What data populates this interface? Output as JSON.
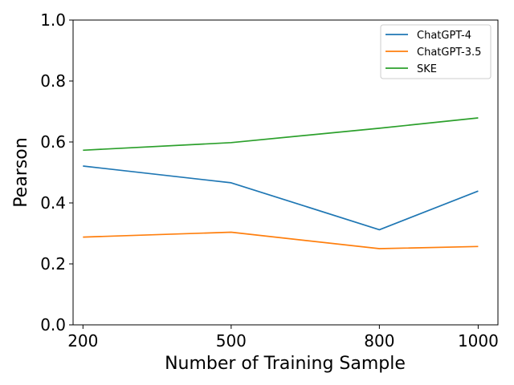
{
  "chart_data": {
    "type": "line",
    "title": "",
    "xlabel": "Number of Training Sample",
    "ylabel": "Pearson",
    "x": [
      200,
      500,
      800,
      1000
    ],
    "x_tick_labels": [
      "200",
      "500",
      "800",
      "1000"
    ],
    "ylim": [
      0.0,
      1.0
    ],
    "y_ticks": [
      0.0,
      0.2,
      0.4,
      0.6,
      0.8,
      1.0
    ],
    "y_tick_labels": [
      "0.0",
      "0.2",
      "0.4",
      "0.6",
      "0.8",
      "1.0"
    ],
    "grid": false,
    "legend_position": "top-right",
    "series": [
      {
        "name": "ChatGPT-4",
        "color": "#1f77b4",
        "values": [
          0.521,
          0.466,
          0.312,
          0.439
        ]
      },
      {
        "name": "ChatGPT-3.5",
        "color": "#ff7f0e",
        "values": [
          0.288,
          0.304,
          0.25,
          0.257
        ]
      },
      {
        "name": "SKE",
        "color": "#2ca02c",
        "values": [
          0.573,
          0.598,
          0.645,
          0.679
        ]
      }
    ]
  }
}
